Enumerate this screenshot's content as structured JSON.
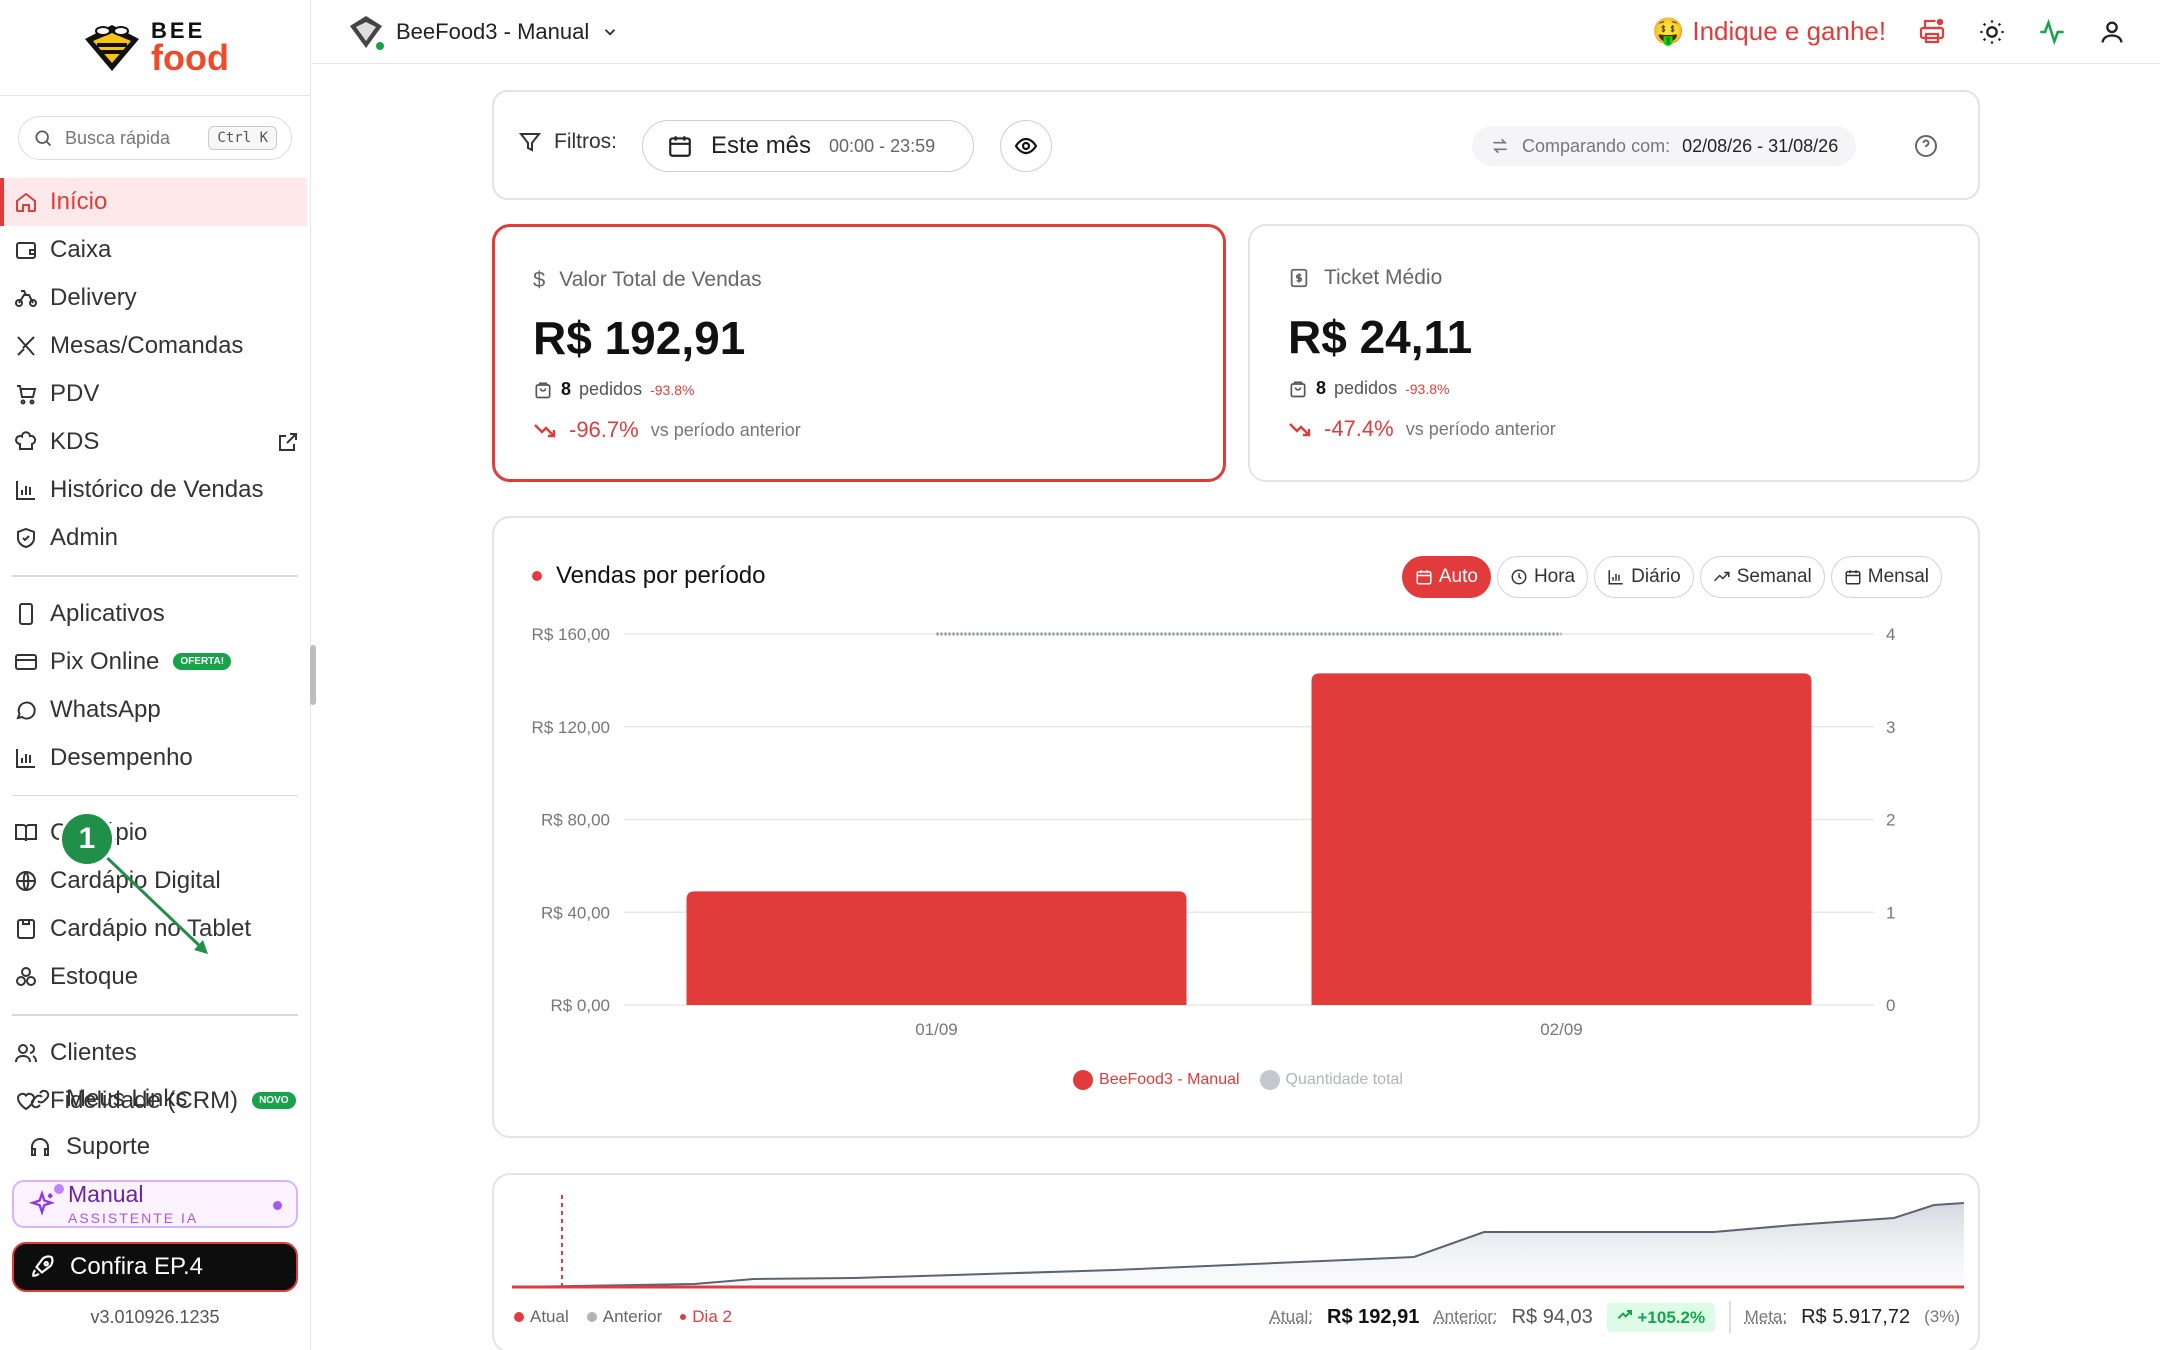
{
  "brand": {
    "line1": "BEE",
    "line2": "food"
  },
  "search": {
    "placeholder": "Busca rápida",
    "shortcut": "Ctrl K"
  },
  "sidebar": {
    "group1": [
      {
        "label": "Início",
        "icon": "home-icon",
        "active": true
      },
      {
        "label": "Caixa",
        "icon": "wallet-icon"
      },
      {
        "label": "Delivery",
        "icon": "bike-icon"
      },
      {
        "label": "Mesas/Comandas",
        "icon": "utensils-icon"
      },
      {
        "label": "PDV",
        "icon": "cart-icon"
      },
      {
        "label": "KDS",
        "icon": "chef-hat-icon",
        "external": true
      },
      {
        "label": "Histórico de Vendas",
        "icon": "bar-chart-icon"
      },
      {
        "label": "Admin",
        "icon": "shield-icon"
      }
    ],
    "group2": [
      {
        "label": "Aplicativos",
        "icon": "phone-icon"
      },
      {
        "label": "Pix Online",
        "icon": "card-icon",
        "badge": "OFERTA!"
      },
      {
        "label": "WhatsApp",
        "icon": "chat-icon"
      },
      {
        "label": "Desempenho",
        "icon": "bar-chart-icon"
      }
    ],
    "group3": [
      {
        "label": "Cardápio",
        "icon": "book-icon"
      },
      {
        "label": "Cardápio Digital",
        "icon": "globe-icon"
      },
      {
        "label": "Cardápio no Tablet",
        "icon": "tablet-icon"
      },
      {
        "label": "Estoque",
        "icon": "boxes-icon"
      }
    ],
    "group4": [
      {
        "label": "Clientes",
        "icon": "users-icon"
      },
      {
        "label": "Fidelidade (CRM)",
        "icon": "heart-icon",
        "badge": "NOVO"
      }
    ],
    "bottom": [
      {
        "label": "Meus Links",
        "icon": "link-icon"
      },
      {
        "label": "Suporte",
        "icon": "headset-icon"
      }
    ],
    "ai": {
      "title": "Manual",
      "subtitle": "ASSISTENTE IA"
    },
    "episode_button": "Confira EP.4",
    "version": "v3.010926.1235",
    "annotation": "1"
  },
  "topbar": {
    "store_name": "BeeFood3 - Manual",
    "referral": "Indique e ganhe!",
    "referral_emoji": "🤑"
  },
  "filters": {
    "label": "Filtros:",
    "period": "Este mês",
    "time_range": "00:00 - 23:59",
    "compare_label": "Comparando com:",
    "compare_range": "02/08/26 - 31/08/26"
  },
  "kpis": [
    {
      "label": "Valor Total de Vendas",
      "value": "R$ 192,91",
      "orders": "8",
      "orders_label": "pedidos",
      "orders_change": "-93.8%",
      "change": "-96.7%",
      "change_label": "vs período anterior"
    },
    {
      "label": "Ticket Médio",
      "value": "R$ 24,11",
      "orders": "8",
      "orders_label": "pedidos",
      "orders_change": "-93.8%",
      "change": "-47.4%",
      "change_label": "vs período anterior"
    }
  ],
  "chart": {
    "title": "Vendas por período",
    "modes": [
      "Auto",
      "Hora",
      "Diário",
      "Semanal",
      "Mensal"
    ],
    "active_mode": "Auto",
    "legend": [
      "BeeFood3 - Manual",
      "Quantidade total"
    ]
  },
  "chart_data": {
    "type": "bar",
    "categories": [
      "01/09",
      "02/09"
    ],
    "series": [
      {
        "name": "BeeFood3 - Manual",
        "values": [
          49,
          143
        ],
        "color": "#e23b3b",
        "axis": "left"
      },
      {
        "name": "Quantidade total",
        "values": [
          4,
          4
        ],
        "color": "#9ca3af",
        "axis": "right",
        "style": "line"
      }
    ],
    "y_left": {
      "ticks": [
        "R$ 0,00",
        "R$ 40,00",
        "R$ 80,00",
        "R$ 120,00",
        "R$ 160,00"
      ],
      "range": [
        0,
        160
      ]
    },
    "y_right": {
      "ticks": [
        "0",
        "1",
        "2",
        "3",
        "4"
      ],
      "range": [
        0,
        4
      ]
    },
    "grid": true,
    "legend_position": "bottom"
  },
  "summary": {
    "legend": [
      "Atual",
      "Anterior",
      "Dia 2"
    ],
    "current_label": "Atual:",
    "current_value": "R$ 192,91",
    "previous_label": "Anterior:",
    "previous_value": "R$ 94,03",
    "change": "+105.2%",
    "goal_label": "Meta:",
    "goal_value": "R$ 5.917,72",
    "goal_pct": "(3%)"
  }
}
